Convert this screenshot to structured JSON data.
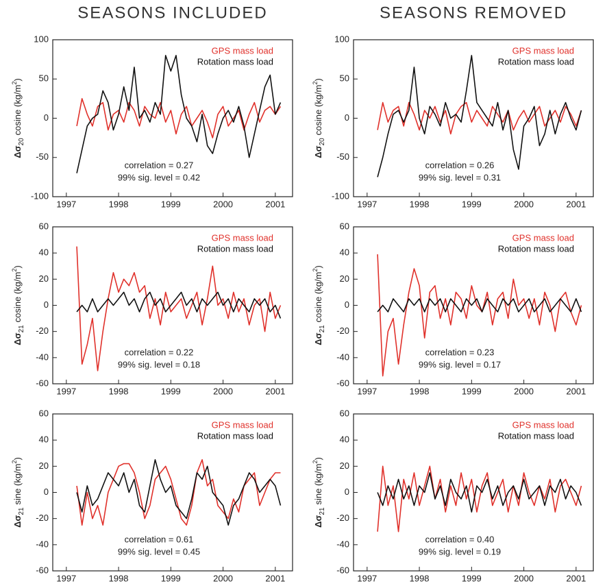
{
  "column_titles": [
    "SEASONS INCLUDED",
    "SEASONS REMOVED"
  ],
  "chart_data": [
    {
      "type": "line",
      "ylabel": {
        "symbol": "Δσ",
        "subscript": "20",
        "text": "cosine  (kg/m",
        "superscript": "2",
        "end": ")"
      },
      "x": [
        1997.2,
        1997.3,
        1997.4,
        1997.5,
        1997.6,
        1997.7,
        1997.8,
        1997.9,
        1998.0,
        1998.1,
        1998.2,
        1998.3,
        1998.4,
        1998.5,
        1998.6,
        1998.7,
        1998.8,
        1998.9,
        1999.0,
        1999.1,
        1999.2,
        1999.3,
        1999.4,
        1999.5,
        1999.6,
        1999.7,
        1999.8,
        1999.9,
        2000.0,
        2000.1,
        2000.2,
        2000.3,
        2000.4,
        2000.5,
        2000.6,
        2000.7,
        2000.8,
        2000.9,
        2001.0,
        2001.1
      ],
      "series": [
        {
          "name": "GPS mass load",
          "color": "#e0302a",
          "values": [
            -10,
            25,
            5,
            -10,
            15,
            20,
            -15,
            5,
            10,
            -5,
            20,
            10,
            -10,
            15,
            5,
            0,
            20,
            -5,
            10,
            -20,
            5,
            15,
            -10,
            0,
            10,
            -5,
            -25,
            5,
            15,
            -10,
            0,
            10,
            -15,
            5,
            20,
            -5,
            10,
            15,
            5,
            15
          ]
        },
        {
          "name": "Rotation mass load",
          "color": "#111111",
          "values": [
            -70,
            -40,
            -10,
            0,
            5,
            35,
            20,
            -15,
            5,
            40,
            10,
            65,
            0,
            10,
            -5,
            20,
            5,
            80,
            60,
            80,
            30,
            0,
            -10,
            -30,
            5,
            -35,
            -45,
            -20,
            0,
            10,
            -5,
            15,
            -10,
            -50,
            -20,
            10,
            40,
            55,
            5,
            20
          ]
        }
      ],
      "xlim": [
        1996.74,
        2001.33
      ],
      "ylim": [
        -100,
        100
      ],
      "xticks": [
        1997,
        1998,
        1999,
        2000,
        2001
      ],
      "yticks": [
        -100,
        -50,
        0,
        50,
        100
      ],
      "annotations": [
        "correlation = 0.27",
        "99% sig. level = 0.42"
      ],
      "legend": "upper right"
    },
    {
      "type": "line",
      "ylabel": {
        "symbol": "Δσ",
        "subscript": "20",
        "text": "cosine  (kg/m",
        "superscript": "2",
        "end": ")"
      },
      "x": [
        1997.2,
        1997.3,
        1997.4,
        1997.5,
        1997.6,
        1997.7,
        1997.8,
        1997.9,
        1998.0,
        1998.1,
        1998.2,
        1998.3,
        1998.4,
        1998.5,
        1998.6,
        1998.7,
        1998.8,
        1998.9,
        1999.0,
        1999.1,
        1999.2,
        1999.3,
        1999.4,
        1999.5,
        1999.6,
        1999.7,
        1999.8,
        1999.9,
        2000.0,
        2000.1,
        2000.2,
        2000.3,
        2000.4,
        2000.5,
        2000.6,
        2000.7,
        2000.8,
        2000.9,
        2001.0,
        2001.1
      ],
      "series": [
        {
          "name": "GPS mass load",
          "color": "#e0302a",
          "values": [
            -15,
            20,
            -5,
            10,
            15,
            -10,
            20,
            5,
            -15,
            10,
            0,
            15,
            -5,
            10,
            -20,
            5,
            15,
            20,
            -5,
            10,
            0,
            -10,
            15,
            5,
            -5,
            10,
            -15,
            0,
            10,
            -5,
            5,
            15,
            -10,
            0,
            10,
            -5,
            15,
            5,
            -10,
            10
          ]
        },
        {
          "name": "Rotation mass load",
          "color": "#111111",
          "values": [
            -75,
            -50,
            -20,
            5,
            10,
            -5,
            10,
            65,
            0,
            -20,
            15,
            5,
            -10,
            20,
            0,
            5,
            -5,
            35,
            80,
            20,
            10,
            0,
            -10,
            20,
            -15,
            10,
            -40,
            -65,
            -10,
            0,
            15,
            -35,
            -20,
            10,
            -20,
            5,
            20,
            0,
            -15,
            10
          ]
        }
      ],
      "xlim": [
        1996.74,
        2001.33
      ],
      "ylim": [
        -100,
        100
      ],
      "xticks": [
        1997,
        1998,
        1999,
        2000,
        2001
      ],
      "yticks": [
        -100,
        -50,
        0,
        50,
        100
      ],
      "annotations": [
        "correlation = 0.26",
        "99% sig. level = 0.31"
      ],
      "legend": "upper right"
    },
    {
      "type": "line",
      "ylabel": {
        "symbol": "Δσ",
        "subscript": "21",
        "text": "cosine  (kg/m",
        "superscript": "2",
        "end": ")"
      },
      "x": [
        1997.2,
        1997.3,
        1997.4,
        1997.5,
        1997.6,
        1997.7,
        1997.8,
        1997.9,
        1998.0,
        1998.1,
        1998.2,
        1998.3,
        1998.4,
        1998.5,
        1998.6,
        1998.7,
        1998.8,
        1998.9,
        1999.0,
        1999.1,
        1999.2,
        1999.3,
        1999.4,
        1999.5,
        1999.6,
        1999.7,
        1999.8,
        1999.9,
        2000.0,
        2000.1,
        2000.2,
        2000.3,
        2000.4,
        2000.5,
        2000.6,
        2000.7,
        2000.8,
        2000.9,
        2001.0,
        2001.1
      ],
      "series": [
        {
          "name": "GPS mass load",
          "color": "#e0302a",
          "values": [
            45,
            -45,
            -30,
            -10,
            -50,
            -20,
            5,
            25,
            10,
            20,
            15,
            25,
            10,
            15,
            -10,
            5,
            -15,
            10,
            -5,
            0,
            5,
            -10,
            0,
            10,
            -15,
            5,
            30,
            0,
            5,
            -10,
            10,
            -5,
            5,
            -15,
            0,
            5,
            -20,
            10,
            -10,
            0
          ]
        },
        {
          "name": "Rotation mass load",
          "color": "#111111",
          "values": [
            -5,
            0,
            -5,
            5,
            -5,
            0,
            5,
            0,
            5,
            10,
            0,
            5,
            -5,
            5,
            10,
            0,
            5,
            -5,
            0,
            5,
            10,
            0,
            5,
            -5,
            5,
            0,
            5,
            10,
            0,
            5,
            -5,
            5,
            0,
            -5,
            5,
            0,
            5,
            -5,
            0,
            -10
          ]
        }
      ],
      "xlim": [
        1996.74,
        2001.33
      ],
      "ylim": [
        -60,
        60
      ],
      "xticks": [
        1997,
        1998,
        1999,
        2000,
        2001
      ],
      "yticks": [
        -60,
        -40,
        -20,
        0,
        20,
        40,
        60
      ],
      "annotations": [
        "correlation = 0.22",
        "99% sig. level = 0.18"
      ],
      "legend": "upper right"
    },
    {
      "type": "line",
      "ylabel": {
        "symbol": "Δσ",
        "subscript": "21",
        "text": "cosine  (kg/m",
        "superscript": "2",
        "end": ")"
      },
      "x": [
        1997.2,
        1997.3,
        1997.4,
        1997.5,
        1997.6,
        1997.7,
        1997.8,
        1997.9,
        1998.0,
        1998.1,
        1998.2,
        1998.3,
        1998.4,
        1998.5,
        1998.6,
        1998.7,
        1998.8,
        1998.9,
        1999.0,
        1999.1,
        1999.2,
        1999.3,
        1999.4,
        1999.5,
        1999.6,
        1999.7,
        1999.8,
        1999.9,
        2000.0,
        2000.1,
        2000.2,
        2000.3,
        2000.4,
        2000.5,
        2000.6,
        2000.7,
        2000.8,
        2000.9,
        2001.0,
        2001.1
      ],
      "series": [
        {
          "name": "GPS mass load",
          "color": "#e0302a",
          "values": [
            39,
            -54,
            -20,
            -10,
            -45,
            -15,
            10,
            28,
            15,
            -25,
            10,
            15,
            -10,
            5,
            -15,
            10,
            5,
            -10,
            15,
            0,
            -5,
            10,
            -15,
            5,
            10,
            -10,
            20,
            0,
            5,
            -10,
            5,
            -15,
            10,
            0,
            -20,
            5,
            10,
            -5,
            -15,
            0
          ]
        },
        {
          "name": "Rotation mass load",
          "color": "#111111",
          "values": [
            -5,
            0,
            -5,
            5,
            0,
            -5,
            5,
            0,
            5,
            -5,
            5,
            0,
            5,
            -5,
            5,
            0,
            -5,
            5,
            0,
            5,
            -5,
            5,
            0,
            -5,
            5,
            0,
            5,
            -5,
            0,
            5,
            -5,
            0,
            5,
            -5,
            0,
            5,
            0,
            -5,
            5,
            -5
          ]
        }
      ],
      "xlim": [
        1996.74,
        2001.33
      ],
      "ylim": [
        -60,
        60
      ],
      "xticks": [
        1997,
        1998,
        1999,
        2000,
        2001
      ],
      "yticks": [
        -60,
        -40,
        -20,
        0,
        20,
        40,
        60
      ],
      "annotations": [
        "correlation = 0.23",
        "99% sig. level = 0.17"
      ],
      "legend": "upper right"
    },
    {
      "type": "line",
      "ylabel": {
        "symbol": "Δσ",
        "subscript": "21",
        "text": "sine  (kg/m",
        "superscript": "2",
        "end": ")"
      },
      "x": [
        1997.2,
        1997.3,
        1997.4,
        1997.5,
        1997.6,
        1997.7,
        1997.8,
        1997.9,
        1998.0,
        1998.1,
        1998.2,
        1998.3,
        1998.4,
        1998.5,
        1998.6,
        1998.7,
        1998.8,
        1998.9,
        1999.0,
        1999.1,
        1999.2,
        1999.3,
        1999.4,
        1999.5,
        1999.6,
        1999.7,
        1999.8,
        1999.9,
        2000.0,
        2000.1,
        2000.2,
        2000.3,
        2000.4,
        2000.5,
        2000.6,
        2000.7,
        2000.8,
        2000.9,
        2001.0,
        2001.1
      ],
      "series": [
        {
          "name": "GPS mass load",
          "color": "#e0302a",
          "values": [
            5,
            -25,
            0,
            -20,
            -10,
            -25,
            0,
            10,
            20,
            22,
            22,
            15,
            0,
            -20,
            -10,
            10,
            15,
            20,
            10,
            -5,
            -20,
            -25,
            -10,
            15,
            25,
            5,
            10,
            -10,
            -15,
            -20,
            -5,
            -15,
            5,
            10,
            15,
            -10,
            0,
            10,
            15,
            15
          ]
        },
        {
          "name": "Rotation mass load",
          "color": "#111111",
          "values": [
            0,
            -15,
            5,
            -10,
            -5,
            5,
            15,
            10,
            5,
            15,
            0,
            10,
            -10,
            -15,
            5,
            25,
            10,
            0,
            5,
            -10,
            -15,
            -20,
            -5,
            15,
            10,
            20,
            0,
            -5,
            -10,
            -25,
            -10,
            -5,
            5,
            15,
            10,
            0,
            5,
            10,
            5,
            -10
          ]
        }
      ],
      "xlim": [
        1996.74,
        2001.33
      ],
      "ylim": [
        -60,
        60
      ],
      "xticks": [
        1997,
        1998,
        1999,
        2000,
        2001
      ],
      "yticks": [
        -60,
        -40,
        -20,
        0,
        20,
        40,
        60
      ],
      "annotations": [
        "correlation = 0.61",
        "99% sig. level = 0.45"
      ],
      "legend": "upper right"
    },
    {
      "type": "line",
      "ylabel": {
        "symbol": "Δσ",
        "subscript": "21",
        "text": "sine  (kg/m",
        "superscript": "2",
        "end": ")"
      },
      "x": [
        1997.2,
        1997.3,
        1997.4,
        1997.5,
        1997.6,
        1997.7,
        1997.8,
        1997.9,
        1998.0,
        1998.1,
        1998.2,
        1998.3,
        1998.4,
        1998.5,
        1998.6,
        1998.7,
        1998.8,
        1998.9,
        1999.0,
        1999.1,
        1999.2,
        1999.3,
        1999.4,
        1999.5,
        1999.6,
        1999.7,
        1999.8,
        1999.9,
        2000.0,
        2000.1,
        2000.2,
        2000.3,
        2000.4,
        2000.5,
        2000.6,
        2000.7,
        2000.8,
        2000.9,
        2001.0,
        2001.1
      ],
      "series": [
        {
          "name": "GPS mass load",
          "color": "#e0302a",
          "values": [
            -30,
            20,
            -10,
            5,
            -30,
            10,
            -5,
            15,
            -10,
            5,
            20,
            -5,
            10,
            -15,
            5,
            -10,
            15,
            -5,
            10,
            -15,
            5,
            15,
            -10,
            0,
            10,
            -15,
            5,
            -10,
            15,
            0,
            -10,
            5,
            -5,
            10,
            -15,
            5,
            10,
            0,
            -10,
            5
          ]
        },
        {
          "name": "Rotation mass load",
          "color": "#111111",
          "values": [
            0,
            -10,
            5,
            -5,
            10,
            -5,
            5,
            -10,
            5,
            0,
            15,
            -5,
            5,
            -10,
            10,
            0,
            -5,
            5,
            -15,
            5,
            0,
            10,
            -5,
            5,
            -10,
            0,
            5,
            -5,
            10,
            -5,
            0,
            5,
            -10,
            5,
            0,
            10,
            -5,
            5,
            0,
            -10
          ]
        }
      ],
      "xlim": [
        1996.74,
        2001.33
      ],
      "ylim": [
        -60,
        60
      ],
      "xticks": [
        1997,
        1998,
        1999,
        2000,
        2001
      ],
      "yticks": [
        -60,
        -40,
        -20,
        0,
        20,
        40,
        60
      ],
      "annotations": [
        "correlation = 0.40",
        "99% sig. level = 0.19"
      ],
      "legend": "upper right"
    }
  ]
}
